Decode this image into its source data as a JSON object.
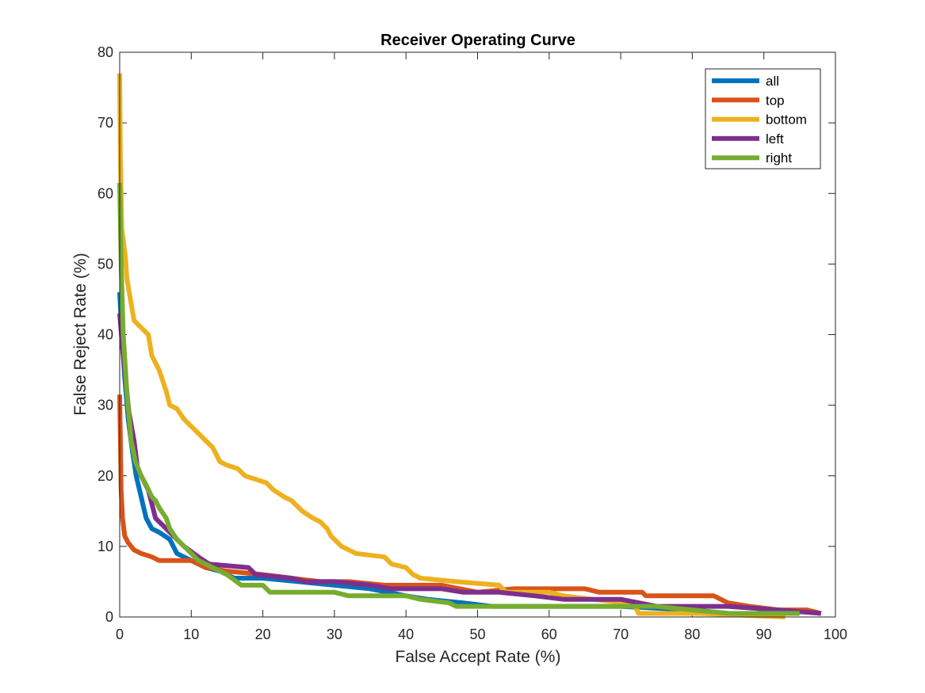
{
  "chart_data": {
    "type": "line",
    "title": "Receiver Operating Curve",
    "xlabel": "False Accept Rate (%)",
    "ylabel": "False Reject Rate (%)",
    "xlim": [
      0,
      100
    ],
    "ylim": [
      0,
      80
    ],
    "xticks": [
      "0",
      "10",
      "20",
      "30",
      "40",
      "50",
      "60",
      "70",
      "80",
      "90",
      "100"
    ],
    "yticks": [
      "0",
      "10",
      "20",
      "30",
      "40",
      "50",
      "60",
      "70",
      "80"
    ],
    "grid": false,
    "legend_position": "top-right",
    "series": [
      {
        "name": "all",
        "color": "#0072BD",
        "points": [
          [
            0,
            46
          ],
          [
            0.3,
            40
          ],
          [
            0.7,
            34
          ],
          [
            1.2,
            28
          ],
          [
            1.7,
            24
          ],
          [
            2.3,
            20
          ],
          [
            3,
            17
          ],
          [
            3.7,
            14
          ],
          [
            4.5,
            12.5
          ],
          [
            5.5,
            12
          ],
          [
            7,
            11
          ],
          [
            8,
            9
          ],
          [
            10,
            8
          ],
          [
            12,
            7
          ],
          [
            14,
            6.5
          ],
          [
            16,
            5.5
          ],
          [
            20,
            5.5
          ],
          [
            25,
            5
          ],
          [
            30,
            4.5
          ],
          [
            35,
            4
          ],
          [
            40,
            3
          ],
          [
            43,
            2.5
          ],
          [
            48,
            2
          ],
          [
            52,
            1.5
          ],
          [
            60,
            1.5
          ],
          [
            70,
            1.5
          ],
          [
            80,
            1
          ],
          [
            85,
            0.5
          ],
          [
            93,
            0.5
          ]
        ]
      },
      {
        "name": "top",
        "color": "#D95319",
        "points": [
          [
            0,
            31.5
          ],
          [
            0.1,
            25
          ],
          [
            0.2,
            18
          ],
          [
            0.4,
            14
          ],
          [
            0.7,
            11.5
          ],
          [
            1.2,
            10.5
          ],
          [
            2,
            9.5
          ],
          [
            3,
            9
          ],
          [
            4.5,
            8.5
          ],
          [
            5.5,
            8
          ],
          [
            10,
            8
          ],
          [
            12,
            7
          ],
          [
            15,
            6.5
          ],
          [
            20,
            6
          ],
          [
            24,
            5.5
          ],
          [
            28,
            5
          ],
          [
            32,
            5
          ],
          [
            37,
            4.5
          ],
          [
            45,
            4.5
          ],
          [
            50,
            3.5
          ],
          [
            55,
            4
          ],
          [
            65,
            4
          ],
          [
            67,
            3.5
          ],
          [
            73,
            3.5
          ],
          [
            73.5,
            3
          ],
          [
            83,
            3
          ],
          [
            85,
            2
          ],
          [
            88,
            1.5
          ],
          [
            92,
            1
          ],
          [
            96,
            1
          ],
          [
            98,
            0.5
          ]
        ]
      },
      {
        "name": "bottom",
        "color": "#EDB120",
        "points": [
          [
            0,
            77
          ],
          [
            0.1,
            65
          ],
          [
            0.3,
            55
          ],
          [
            0.8,
            51
          ],
          [
            1,
            48
          ],
          [
            1.5,
            45
          ],
          [
            2,
            42
          ],
          [
            3,
            41
          ],
          [
            4,
            40
          ],
          [
            4.5,
            37
          ],
          [
            5.5,
            35
          ],
          [
            6.5,
            32
          ],
          [
            7,
            30
          ],
          [
            8,
            29.5
          ],
          [
            9,
            28
          ],
          [
            10,
            27
          ],
          [
            11,
            26
          ],
          [
            12,
            25
          ],
          [
            13,
            24
          ],
          [
            14,
            22
          ],
          [
            15,
            21.5
          ],
          [
            16.5,
            21
          ],
          [
            17.5,
            20
          ],
          [
            19,
            19.5
          ],
          [
            20.5,
            19
          ],
          [
            21.5,
            18
          ],
          [
            23,
            17
          ],
          [
            24,
            16.5
          ],
          [
            25.5,
            15
          ],
          [
            27,
            14
          ],
          [
            28,
            13.5
          ],
          [
            29,
            12.5
          ],
          [
            29.5,
            11.5
          ],
          [
            30,
            11
          ],
          [
            31,
            10
          ],
          [
            32,
            9.5
          ],
          [
            33,
            9
          ],
          [
            37,
            8.5
          ],
          [
            38,
            7.5
          ],
          [
            40,
            7
          ],
          [
            41,
            6
          ],
          [
            42,
            5.5
          ],
          [
            47,
            5
          ],
          [
            53,
            4.5
          ],
          [
            54,
            3.5
          ],
          [
            60,
            3.5
          ],
          [
            62,
            3
          ],
          [
            66,
            2.5
          ],
          [
            71,
            2
          ],
          [
            72,
            1.5
          ],
          [
            72.5,
            0.5
          ],
          [
            81,
            0.5
          ],
          [
            93,
            0
          ]
        ]
      },
      {
        "name": "left",
        "color": "#7E2F8E",
        "points": [
          [
            0,
            43
          ],
          [
            0.4,
            38
          ],
          [
            0.8,
            34
          ],
          [
            1.3,
            29
          ],
          [
            2,
            25
          ],
          [
            2.5,
            21
          ],
          [
            3,
            20
          ],
          [
            4,
            18
          ],
          [
            5,
            14
          ],
          [
            6,
            13
          ],
          [
            7.5,
            11.5
          ],
          [
            9,
            10
          ],
          [
            11,
            8.5
          ],
          [
            12.5,
            7.5
          ],
          [
            18,
            7
          ],
          [
            19,
            6
          ],
          [
            24,
            5.5
          ],
          [
            26,
            5
          ],
          [
            30,
            5
          ],
          [
            35,
            4.5
          ],
          [
            38,
            4
          ],
          [
            45,
            4
          ],
          [
            48,
            3.5
          ],
          [
            53,
            3.5
          ],
          [
            58,
            3
          ],
          [
            62,
            2.5
          ],
          [
            70,
            2.5
          ],
          [
            75,
            1.5
          ],
          [
            85,
            1.5
          ],
          [
            92,
            1
          ],
          [
            98,
            0.5
          ]
        ]
      },
      {
        "name": "right",
        "color": "#77AC30",
        "points": [
          [
            0,
            61.5
          ],
          [
            0.2,
            50
          ],
          [
            0.5,
            40
          ],
          [
            1,
            32
          ],
          [
            1.6,
            25
          ],
          [
            2.2,
            22
          ],
          [
            3,
            20
          ],
          [
            3.8,
            18.5
          ],
          [
            4.5,
            17
          ],
          [
            5,
            16.5
          ],
          [
            5.5,
            15.5
          ],
          [
            6.5,
            14
          ],
          [
            7,
            12.5
          ],
          [
            8,
            11
          ],
          [
            9,
            10
          ],
          [
            10,
            9
          ],
          [
            11,
            8
          ],
          [
            13,
            7
          ],
          [
            15,
            6
          ],
          [
            17,
            4.5
          ],
          [
            20,
            4.5
          ],
          [
            21,
            3.5
          ],
          [
            30,
            3.5
          ],
          [
            32,
            3
          ],
          [
            40,
            3
          ],
          [
            42,
            2.5
          ],
          [
            46,
            2
          ],
          [
            47,
            1.5
          ],
          [
            60,
            1.5
          ],
          [
            75,
            1.5
          ],
          [
            80,
            1
          ],
          [
            85,
            0.5
          ],
          [
            95,
            0.5
          ]
        ]
      }
    ]
  }
}
